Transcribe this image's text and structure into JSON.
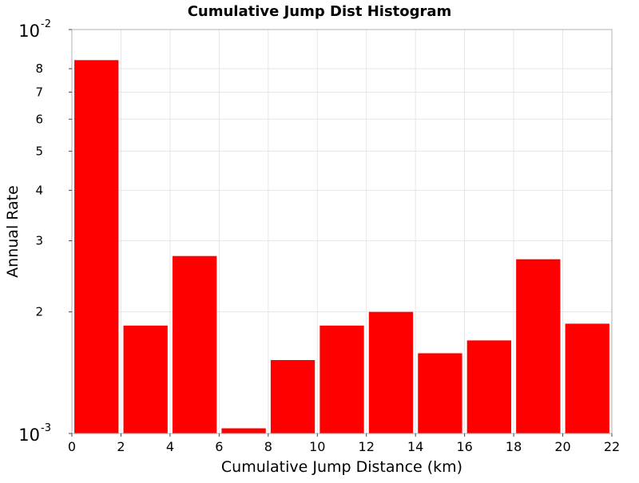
{
  "chart_data": {
    "type": "bar",
    "title": "Cumulative Jump Dist Histogram",
    "xlabel": "Cumulative Jump Distance (km)",
    "ylabel": "Annual Rate",
    "x_scale": "linear",
    "y_scale": "log",
    "xlim": [
      0,
      22
    ],
    "ylim": [
      0.001,
      0.01
    ],
    "x_ticks": [
      "0",
      "2",
      "4",
      "6",
      "8",
      "10",
      "12",
      "14",
      "16",
      "18",
      "20",
      "22"
    ],
    "y_minor_ticks": [
      {
        "value": 0.002,
        "label": "2"
      },
      {
        "value": 0.003,
        "label": "3"
      },
      {
        "value": 0.004,
        "label": "4"
      },
      {
        "value": 0.005,
        "label": "5"
      },
      {
        "value": 0.006,
        "label": "6"
      },
      {
        "value": 0.007,
        "label": "7"
      },
      {
        "value": 0.008,
        "label": "8"
      }
    ],
    "y_decade_ticks": [
      {
        "value": 0.001,
        "base": "10",
        "exponent": "-3"
      },
      {
        "value": 0.01,
        "base": "10",
        "exponent": "-2"
      }
    ],
    "grid": true,
    "bar_color": "#ff0000",
    "bar_width": 1.8,
    "bars": [
      {
        "x": 1,
        "value": 0.0084
      },
      {
        "x": 3,
        "value": 0.00185
      },
      {
        "x": 5,
        "value": 0.00275
      },
      {
        "x": 7,
        "value": 0.00103
      },
      {
        "x": 9,
        "value": 0.00152
      },
      {
        "x": 11,
        "value": 0.00185
      },
      {
        "x": 13,
        "value": 0.002
      },
      {
        "x": 15,
        "value": 0.00158
      },
      {
        "x": 17,
        "value": 0.0017
      },
      {
        "x": 19,
        "value": 0.0027
      },
      {
        "x": 21,
        "value": 0.00187
      }
    ]
  }
}
